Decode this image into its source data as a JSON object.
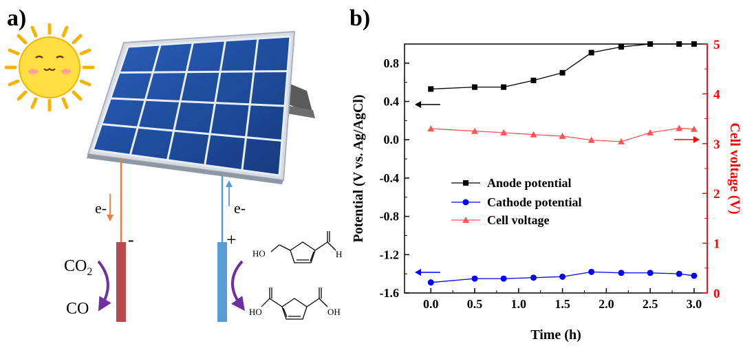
{
  "panel_a": {
    "label": "a)",
    "electron_left": "e-",
    "electron_right": "e-",
    "terminal_neg": "-",
    "terminal_pos": "+",
    "co2": "CO",
    "co2_sub": "2",
    "co": "CO",
    "hmf_ho": "HO",
    "hmf_h": "H",
    "fdca_ho_left": "HO",
    "fdca_oh_right": "OH",
    "colors": {
      "cathode": "#b84a4a",
      "anode": "#5b9bd5",
      "wire_neg": "#ed7d31",
      "wire_pos": "#5b9bd5",
      "arrow": "#7030a0",
      "sun": "#ffd93b",
      "panel": "#1f4e99"
    }
  },
  "panel_b": {
    "label": "b)"
  },
  "chart_data": {
    "type": "line",
    "xlabel": "Time (h)",
    "ylabel_left": "Potential (V vs. Ag/AgCl)",
    "ylabel_right": "Cell voltage (V)",
    "xlim": [
      -0.3,
      3.15
    ],
    "ylim_left": [
      -1.6,
      1.0
    ],
    "ylim_right": [
      0,
      5
    ],
    "x_ticks": [
      "0.0",
      "0.5",
      "1.0",
      "1.5",
      "2.0",
      "2.5",
      "3.0"
    ],
    "y_ticks_left": [
      "-1.6",
      "-1.2",
      "-0.8",
      "-0.4",
      "0.0",
      "0.4",
      "0.8"
    ],
    "y_ticks_right": [
      "0",
      "1",
      "2",
      "3",
      "4",
      "5"
    ],
    "x": [
      0.0,
      0.5,
      0.83,
      1.17,
      1.5,
      1.83,
      2.17,
      2.5,
      2.83,
      3.0
    ],
    "series": [
      {
        "name": "Anode potential",
        "axis": "left",
        "color": "#000000",
        "marker": "square",
        "values": [
          0.53,
          0.55,
          0.55,
          0.62,
          0.7,
          0.91,
          0.97,
          1.0,
          1.0,
          1.0
        ]
      },
      {
        "name": "Cathode potential",
        "axis": "left",
        "color": "#0000ff",
        "marker": "circle",
        "values": [
          -1.49,
          -1.45,
          -1.45,
          -1.44,
          -1.43,
          -1.38,
          -1.39,
          -1.39,
          -1.4,
          -1.42
        ]
      },
      {
        "name": "Cell voltage",
        "axis": "right",
        "color": "#ff5555",
        "marker": "triangle",
        "values": [
          3.3,
          3.25,
          3.22,
          3.18,
          3.15,
          3.07,
          3.04,
          3.22,
          3.31,
          3.29
        ]
      }
    ],
    "legend_position": "center-left",
    "colors": {
      "right_axis": "#ff0000"
    }
  }
}
